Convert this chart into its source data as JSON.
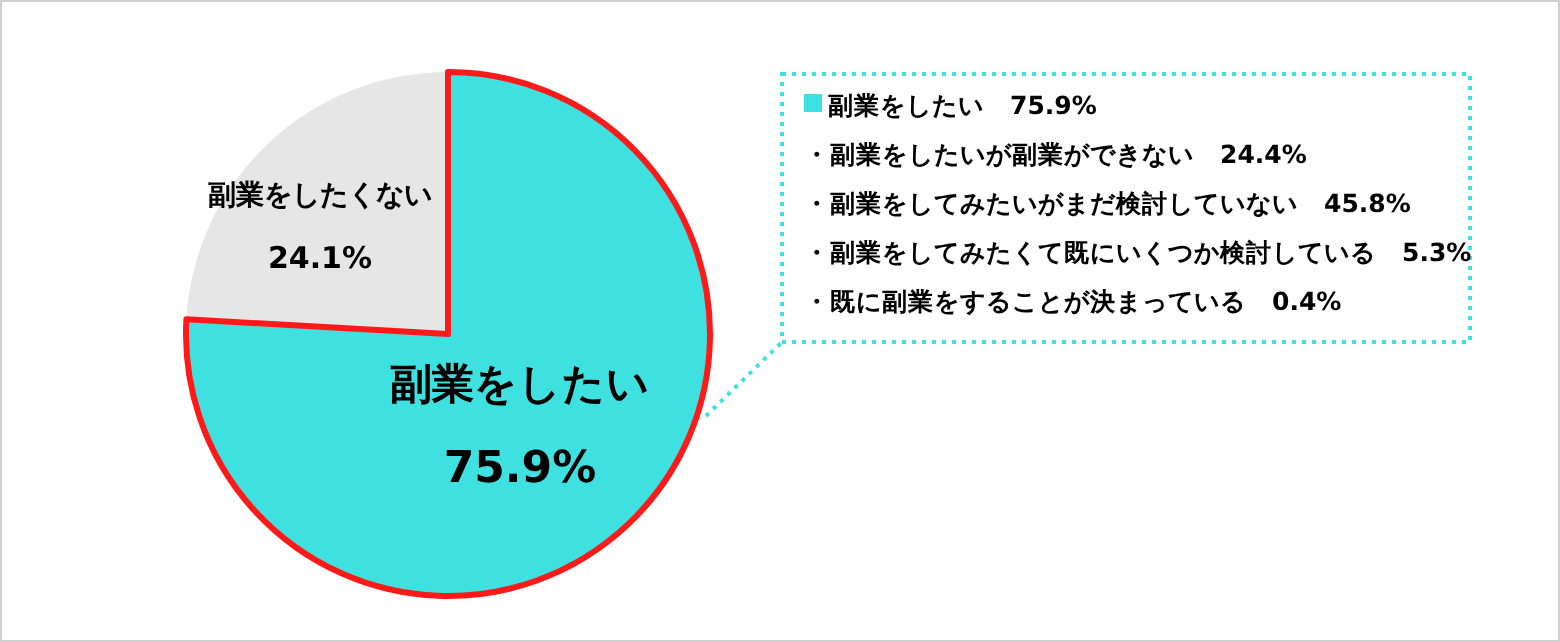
{
  "chart_data": {
    "type": "pie",
    "categories": [
      "副業をしたい",
      "副業をしたくない"
    ],
    "values": [
      75.9,
      24.1
    ],
    "colors": [
      "#3ee0e0",
      "#e6e6e6"
    ],
    "value_labels": [
      "75.9%",
      "24.1%"
    ],
    "annotations": [
      "副業をしたい　75.9%",
      "・副業をしたいが副業ができない　24.4%",
      "・副業をしてみたいがまだ検討していない　45.8%",
      "・副業をしてみたくて既にいくつか検討している　5.3%",
      "・既に副業をすることが決まっている　0.4%"
    ]
  }
}
